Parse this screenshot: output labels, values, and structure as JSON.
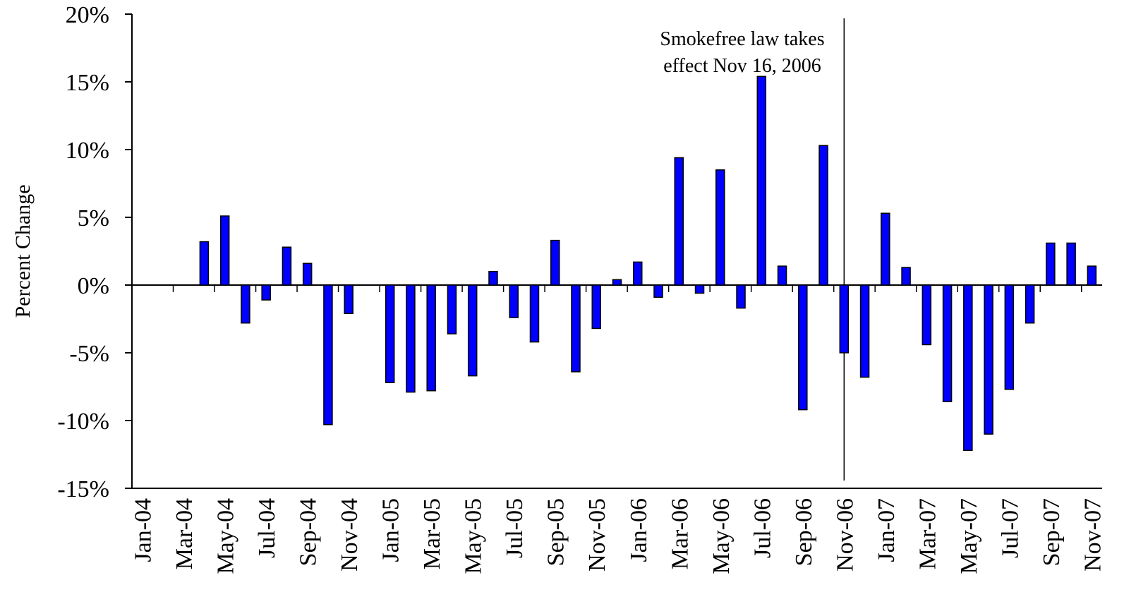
{
  "chart_data": {
    "type": "bar",
    "y_label": "Percent Change",
    "annotation": [
      "Smokefree law takes",
      "effect Nov 16, 2006"
    ],
    "categories": [
      "Jan-04",
      null,
      "Mar-04",
      null,
      "May-04",
      null,
      "Jul-04",
      null,
      "Sep-04",
      null,
      "Nov-04",
      null,
      "Jan-05",
      null,
      "Mar-05",
      null,
      "May-05",
      null,
      "Jul-05",
      null,
      "Sep-05",
      null,
      "Nov-05",
      null,
      "Jan-06",
      null,
      "Mar-06",
      null,
      "May-06",
      null,
      "Jul-06",
      null,
      "Sep-06",
      null,
      "Nov-06",
      null,
      "Jan-07",
      null,
      "Mar-07",
      null,
      "May-07",
      null,
      "Jul-07",
      null,
      "Sep-07",
      null,
      "Nov-07"
    ],
    "values": [
      null,
      null,
      null,
      3.2,
      5.1,
      -2.8,
      -1.1,
      2.8,
      1.6,
      -10.3,
      -2.1,
      null,
      -7.2,
      -7.9,
      -7.8,
      -3.6,
      -6.7,
      1.0,
      -2.4,
      -4.2,
      3.3,
      -6.4,
      -3.2,
      0.4,
      1.7,
      -0.9,
      9.4,
      -0.6,
      8.5,
      -1.7,
      15.4,
      1.4,
      -9.2,
      10.3,
      -5.0,
      -6.8,
      5.3,
      1.3,
      -4.4,
      -8.6,
      -12.2,
      -11.0,
      -7.7,
      -2.8,
      3.1,
      3.1,
      1.4
    ],
    "color": "#0000ff",
    "ylim": [
      -15,
      20
    ],
    "yticks": [
      {
        "value": -15,
        "label": "-15%"
      },
      {
        "value": -10,
        "label": "-10%"
      },
      {
        "value": -5,
        "label": "-5%"
      },
      {
        "value": 0,
        "label": "0%"
      },
      {
        "value": 5,
        "label": "5%"
      },
      {
        "value": 10,
        "label": "10%"
      },
      {
        "value": 15,
        "label": "15%"
      },
      {
        "value": 20,
        "label": "20%"
      }
    ]
  }
}
